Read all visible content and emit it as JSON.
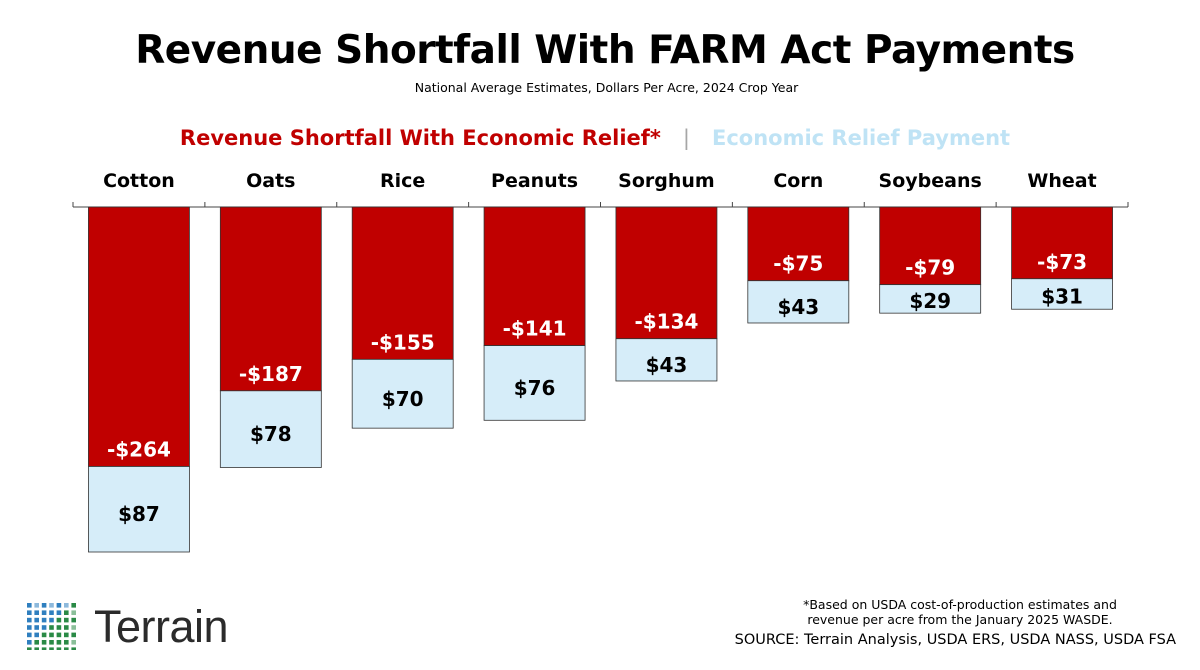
{
  "title": "Revenue Shortfall With FARM Act Payments",
  "subtitle": "National Average Estimates, Dollars Per Acre, 2024 Crop Year",
  "legend": {
    "shortfall_label": "Revenue Shortfall With Economic Relief*",
    "separator": "|",
    "payment_label": "Economic Relief Payment"
  },
  "colors": {
    "shortfall": "#c00000",
    "payment": "#d6edf9",
    "payment_legend": "#bfe3f5",
    "logo_green": "#2a8a46",
    "logo_blue": "#2f7fbf"
  },
  "chart_data": {
    "type": "bar",
    "stacked": true,
    "direction": "downward",
    "categories": [
      "Cotton",
      "Oats",
      "Rice",
      "Peanuts",
      "Sorghum",
      "Corn",
      "Soybeans",
      "Wheat"
    ],
    "series": [
      {
        "name": "Revenue Shortfall With Economic Relief*",
        "values": [
          -264,
          -187,
          -155,
          -141,
          -134,
          -75,
          -79,
          -73
        ],
        "labels": [
          "-$264",
          "-$187",
          "-$155",
          "-$141",
          "-$134",
          "-$75",
          "-$79",
          "-$73"
        ]
      },
      {
        "name": "Economic Relief Payment",
        "values": [
          87,
          78,
          70,
          76,
          43,
          43,
          29,
          31
        ],
        "labels": [
          "$87",
          "$78",
          "$70",
          "$76",
          "$43",
          "$43",
          "$29",
          "$31"
        ]
      }
    ],
    "ylabel": "",
    "xlabel": "",
    "grid": false
  },
  "footnote": {
    "line1": "*Based on USDA cost-of-production estimates and",
    "line2": "revenue per acre from the January 2025 WASDE."
  },
  "source": "SOURCE: Terrain Analysis, USDA ERS, USDA NASS, USDA FSA",
  "logo": {
    "text": "Terrain",
    "icon": "dot-grid-logo-icon"
  }
}
